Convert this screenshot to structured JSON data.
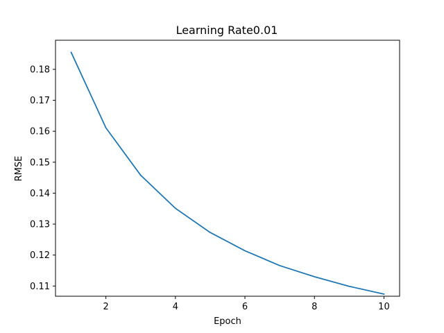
{
  "chart_data": {
    "type": "line",
    "title": "Learning Rate0.01",
    "xlabel": "Epoch",
    "ylabel": "RMSE",
    "x": [
      1,
      2,
      3,
      4,
      5,
      6,
      7,
      8,
      9,
      10
    ],
    "series": [
      {
        "values": [
          0.1855,
          0.1611,
          0.1458,
          0.1351,
          0.1273,
          0.1214,
          0.1166,
          0.113,
          0.1099,
          0.1074
        ],
        "color": "#1f77b4"
      }
    ],
    "xlim": [
      0.55,
      10.45
    ],
    "ylim": [
      0.1067,
      0.1894
    ],
    "xticks": [
      2,
      4,
      6,
      8,
      10
    ],
    "yticks": [
      0.11,
      0.12,
      0.13,
      0.14,
      0.15,
      0.16,
      0.17,
      0.18
    ],
    "ytick_labels": [
      "0.11",
      "0.12",
      "0.13",
      "0.14",
      "0.15",
      "0.16",
      "0.17",
      "0.18"
    ],
    "grid": false,
    "legend": "none"
  }
}
